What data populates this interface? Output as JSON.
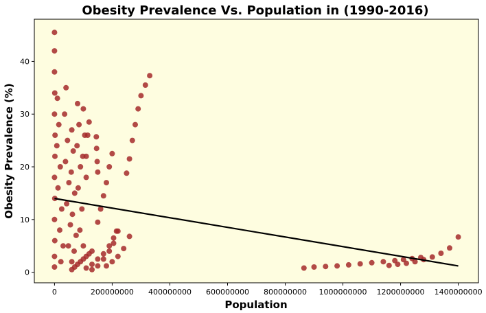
{
  "chart_data": {
    "type": "scatter",
    "title": "Obesity Prevalence Vs. Population in (1990-2016)",
    "xlabel": "Population",
    "ylabel": "Obesity Prevalence (%)",
    "xlim": [
      -70000000,
      1470000000
    ],
    "ylim": [
      -2,
      48
    ],
    "x_ticks": [
      0,
      200000000,
      400000000,
      600000000,
      800000000,
      1000000000,
      1200000000,
      1400000000
    ],
    "x_tick_labels": [
      "0",
      "200000000",
      "400000000",
      "600000000",
      "800000000",
      "1000000000",
      "1200000000",
      "1400000000"
    ],
    "y_ticks": [
      0,
      10,
      20,
      30,
      40
    ],
    "y_tick_labels": [
      "0",
      "10",
      "20",
      "30",
      "40"
    ],
    "grid": false,
    "background_color": "#fefde0",
    "point_color": "#a52a2a",
    "trend_color": "#000000",
    "series": [
      {
        "points": [
          [
            0,
            45.5
          ],
          [
            0,
            42
          ],
          [
            0,
            38
          ],
          [
            1000000,
            34
          ],
          [
            0,
            30
          ],
          [
            2000000,
            26
          ],
          [
            1500000,
            22
          ],
          [
            0,
            18
          ],
          [
            1000000,
            14
          ],
          [
            0,
            10
          ],
          [
            1000000,
            6
          ],
          [
            0,
            3
          ],
          [
            0,
            1
          ],
          [
            10000000,
            33
          ],
          [
            15000000,
            28
          ],
          [
            8000000,
            24
          ],
          [
            20000000,
            20
          ],
          [
            12000000,
            16
          ],
          [
            25000000,
            12
          ],
          [
            18000000,
            8
          ],
          [
            30000000,
            5
          ],
          [
            22000000,
            2
          ],
          [
            40000000,
            35
          ],
          [
            35000000,
            30
          ],
          [
            45000000,
            25
          ],
          [
            38000000,
            21
          ],
          [
            50000000,
            17
          ],
          [
            42000000,
            13
          ],
          [
            55000000,
            9
          ],
          [
            48000000,
            5
          ],
          [
            60000000,
            2
          ],
          [
            60000000,
            27
          ],
          [
            65000000,
            23
          ],
          [
            58000000,
            19
          ],
          [
            70000000,
            15
          ],
          [
            62000000,
            11
          ],
          [
            75000000,
            7
          ],
          [
            68000000,
            4
          ],
          [
            80000000,
            32
          ],
          [
            85000000,
            28
          ],
          [
            78000000,
            24
          ],
          [
            90000000,
            20
          ],
          [
            82000000,
            16
          ],
          [
            95000000,
            12
          ],
          [
            88000000,
            8
          ],
          [
            100000000,
            5
          ],
          [
            100000000,
            31
          ],
          [
            105000000,
            26
          ],
          [
            98000000,
            22
          ],
          [
            110000000,
            18
          ],
          [
            60000000,
            0.5
          ],
          [
            70000000,
            1
          ],
          [
            80000000,
            1.5
          ],
          [
            90000000,
            2
          ],
          [
            100000000,
            2.5
          ],
          [
            110000000,
            3
          ],
          [
            120000000,
            3.5
          ],
          [
            130000000,
            4
          ],
          [
            110000000,
            0.8
          ],
          [
            130000000,
            1.5
          ],
          [
            150000000,
            2.5
          ],
          [
            170000000,
            3.5
          ],
          [
            190000000,
            5
          ],
          [
            205000000,
            6.5
          ],
          [
            220000000,
            7.8
          ],
          [
            130000000,
            0.5
          ],
          [
            150000000,
            1.2
          ],
          [
            170000000,
            2.5
          ],
          [
            190000000,
            4
          ],
          [
            205000000,
            5.5
          ],
          [
            215000000,
            7.8
          ],
          [
            180000000,
            1.2
          ],
          [
            200000000,
            2
          ],
          [
            220000000,
            3
          ],
          [
            240000000,
            4.5
          ],
          [
            260000000,
            6.8
          ],
          [
            110000000,
            22
          ],
          [
            115000000,
            26
          ],
          [
            120000000,
            28.5
          ],
          [
            150000000,
            19
          ],
          [
            148000000,
            21
          ],
          [
            146000000,
            23.5
          ],
          [
            145000000,
            25.7
          ],
          [
            150000000,
            9.5
          ],
          [
            160000000,
            12
          ],
          [
            170000000,
            14.5
          ],
          [
            180000000,
            17
          ],
          [
            190000000,
            20
          ],
          [
            200000000,
            22.5
          ],
          [
            250000000,
            18.8
          ],
          [
            260000000,
            21.5
          ],
          [
            270000000,
            25
          ],
          [
            280000000,
            28
          ],
          [
            290000000,
            31
          ],
          [
            300000000,
            33.5
          ],
          [
            315000000,
            35.5
          ],
          [
            330000000,
            37.3
          ],
          [
            865000000,
            0.8
          ],
          [
            900000000,
            1
          ],
          [
            940000000,
            1.1
          ],
          [
            980000000,
            1.2
          ],
          [
            1020000000,
            1.4
          ],
          [
            1060000000,
            1.6
          ],
          [
            1100000000,
            1.8
          ],
          [
            1140000000,
            2
          ],
          [
            1180000000,
            2.2
          ],
          [
            1210000000,
            2.4
          ],
          [
            1240000000,
            2.6
          ],
          [
            1270000000,
            2.8
          ],
          [
            1160000000,
            1.3
          ],
          [
            1190000000,
            1.5
          ],
          [
            1220000000,
            1.7
          ],
          [
            1250000000,
            2
          ],
          [
            1280000000,
            2.4
          ],
          [
            1310000000,
            2.9
          ],
          [
            1340000000,
            3.6
          ],
          [
            1370000000,
            4.6
          ],
          [
            1400000000,
            6.7
          ]
        ]
      }
    ],
    "trend_line": {
      "x": [
        0,
        1400000000
      ],
      "y": [
        14,
        1.2
      ]
    }
  }
}
